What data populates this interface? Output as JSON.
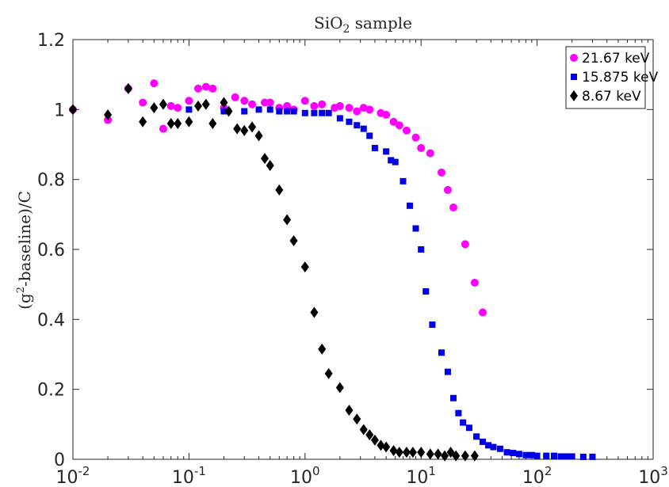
{
  "chart_data": {
    "type": "scatter",
    "title": {
      "base": "SiO",
      "sub": "2",
      "rest": " sample"
    },
    "xlabel": "",
    "ylabel": {
      "pre": "(g",
      "sup": "2",
      "post": "-baseline)/C"
    },
    "xscale": "log",
    "xlim": [
      0.01,
      1000
    ],
    "ylim": [
      0,
      1.2
    ],
    "x_ticks": [
      {
        "base": "10",
        "exp": "-2"
      },
      {
        "base": "10",
        "exp": "-1"
      },
      {
        "base": "10",
        "exp": "0"
      },
      {
        "base": "10",
        "exp": "1"
      },
      {
        "base": "10",
        "exp": "2"
      },
      {
        "base": "10",
        "exp": "3"
      }
    ],
    "y_ticks": [
      "0",
      "0.2",
      "0.4",
      "0.6",
      "0.8",
      "1",
      "1.2"
    ],
    "grid": false,
    "legend_position": "top-right",
    "series": [
      {
        "name": "21.67 keV",
        "marker": "circle",
        "color": "#ff00ff",
        "x": [
          0.01,
          0.02,
          0.03,
          0.04,
          0.05,
          0.06,
          0.07,
          0.08,
          0.1,
          0.12,
          0.14,
          0.16,
          0.2,
          0.25,
          0.3,
          0.35,
          0.45,
          0.5,
          0.6,
          0.7,
          0.8,
          1.0,
          1.2,
          1.4,
          1.8,
          2.0,
          2.4,
          2.8,
          3.2,
          3.6,
          4.5,
          5.0,
          5.8,
          6.5,
          7.5,
          9.0,
          10.0,
          12.0,
          15.0,
          17.0,
          19.0,
          24.0,
          29.0,
          34.0
        ],
        "y": [
          1.0,
          0.97,
          1.06,
          1.02,
          1.075,
          0.945,
          1.01,
          1.005,
          1.025,
          1.06,
          1.065,
          1.06,
          1.005,
          1.035,
          1.025,
          1.015,
          1.02,
          1.02,
          1.005,
          1.01,
          1.0,
          1.025,
          1.01,
          1.015,
          1.005,
          1.01,
          1.005,
          0.995,
          1.005,
          1.0,
          0.99,
          0.985,
          0.965,
          0.955,
          0.94,
          0.92,
          0.89,
          0.875,
          0.82,
          0.77,
          0.72,
          0.615,
          0.505,
          0.42
        ]
      },
      {
        "name": "15.875 keV",
        "marker": "square",
        "color": "#0000e6",
        "x": [
          0.1,
          0.2,
          0.3,
          0.4,
          0.5,
          0.6,
          0.7,
          0.8,
          1.0,
          1.2,
          1.4,
          1.6,
          2.0,
          2.4,
          2.8,
          3.2,
          3.6,
          4.0,
          5.0,
          5.5,
          6.0,
          7.0,
          8.0,
          9.0,
          10.0,
          11.0,
          12.5,
          15.0,
          17.0,
          19.0,
          21.0,
          23.0,
          26.0,
          30.0,
          34.0,
          38.0,
          42.0,
          48.0,
          55.0,
          62.0,
          70.0,
          80.0,
          90.0,
          100.0,
          120.0,
          140.0,
          160.0,
          180.0,
          200.0,
          250.0,
          300.0
        ],
        "y": [
          1.0,
          0.995,
          0.995,
          1.0,
          1.0,
          0.995,
          0.995,
          0.995,
          0.99,
          0.99,
          0.99,
          0.99,
          0.975,
          0.965,
          0.955,
          0.945,
          0.925,
          0.89,
          0.88,
          0.855,
          0.85,
          0.795,
          0.725,
          0.66,
          0.6,
          0.48,
          0.385,
          0.305,
          0.25,
          0.175,
          0.132,
          0.105,
          0.09,
          0.065,
          0.05,
          0.04,
          0.035,
          0.03,
          0.02,
          0.018,
          0.015,
          0.012,
          0.012,
          0.01,
          0.01,
          0.01,
          0.008,
          0.008,
          0.008,
          0.007,
          0.007
        ]
      },
      {
        "name": "8.67 keV",
        "marker": "diamond",
        "color": "#000000",
        "x": [
          0.01,
          0.02,
          0.03,
          0.04,
          0.05,
          0.06,
          0.07,
          0.08,
          0.1,
          0.12,
          0.14,
          0.16,
          0.2,
          0.22,
          0.26,
          0.3,
          0.35,
          0.4,
          0.45,
          0.5,
          0.6,
          0.7,
          0.8,
          1.0,
          1.2,
          1.4,
          1.6,
          2.0,
          2.4,
          2.8,
          3.2,
          3.6,
          4.0,
          4.5,
          5.0,
          5.8,
          6.5,
          7.5,
          8.5,
          10.0,
          12.0,
          14.0,
          16.0,
          18.0,
          20.0,
          24.0,
          29.0
        ],
        "y": [
          1.0,
          0.985,
          1.06,
          0.965,
          1.005,
          1.015,
          0.96,
          0.96,
          0.965,
          1.01,
          1.015,
          0.96,
          1.02,
          0.995,
          0.945,
          0.94,
          0.95,
          0.925,
          0.86,
          0.84,
          0.77,
          0.685,
          0.625,
          0.55,
          0.42,
          0.315,
          0.245,
          0.205,
          0.14,
          0.115,
          0.085,
          0.07,
          0.055,
          0.04,
          0.035,
          0.025,
          0.02,
          0.02,
          0.02,
          0.02,
          0.015,
          0.015,
          0.01,
          0.02,
          0.01,
          0.01,
          0.01
        ]
      }
    ]
  }
}
